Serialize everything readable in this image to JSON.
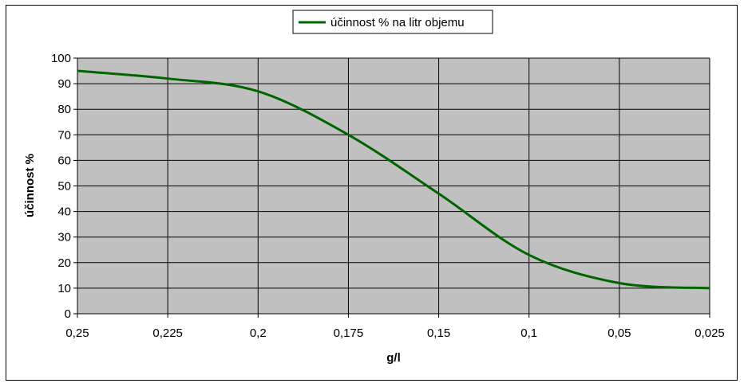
{
  "chart_data": {
    "type": "line",
    "xlabel": "g/l",
    "ylabel": "účinnost %",
    "x_tick_labels": [
      "0,25",
      "0,225",
      "0,2",
      "0,175",
      "0,15",
      "0,1",
      "0,05",
      "0,025"
    ],
    "y_tick_labels": [
      "0",
      "10",
      "20",
      "30",
      "40",
      "50",
      "60",
      "70",
      "80",
      "90",
      "100"
    ],
    "ylim": [
      0,
      100
    ],
    "grid": true,
    "legend_position": "top-center",
    "plot_background": "#c0c0c0",
    "series": [
      {
        "name": "účinnost % na litr objemu",
        "color": "#006400",
        "points": [
          {
            "x": "0,25",
            "y": 95
          },
          {
            "x": "0,225",
            "y": 92
          },
          {
            "x": "0,2",
            "y": 87
          },
          {
            "x": "0,175",
            "y": 70
          },
          {
            "x": "0,15",
            "y": 47
          },
          {
            "x": "0,1",
            "y": 23
          },
          {
            "x": "0,05",
            "y": 12
          },
          {
            "x": "0,025",
            "y": 10
          }
        ]
      }
    ]
  }
}
